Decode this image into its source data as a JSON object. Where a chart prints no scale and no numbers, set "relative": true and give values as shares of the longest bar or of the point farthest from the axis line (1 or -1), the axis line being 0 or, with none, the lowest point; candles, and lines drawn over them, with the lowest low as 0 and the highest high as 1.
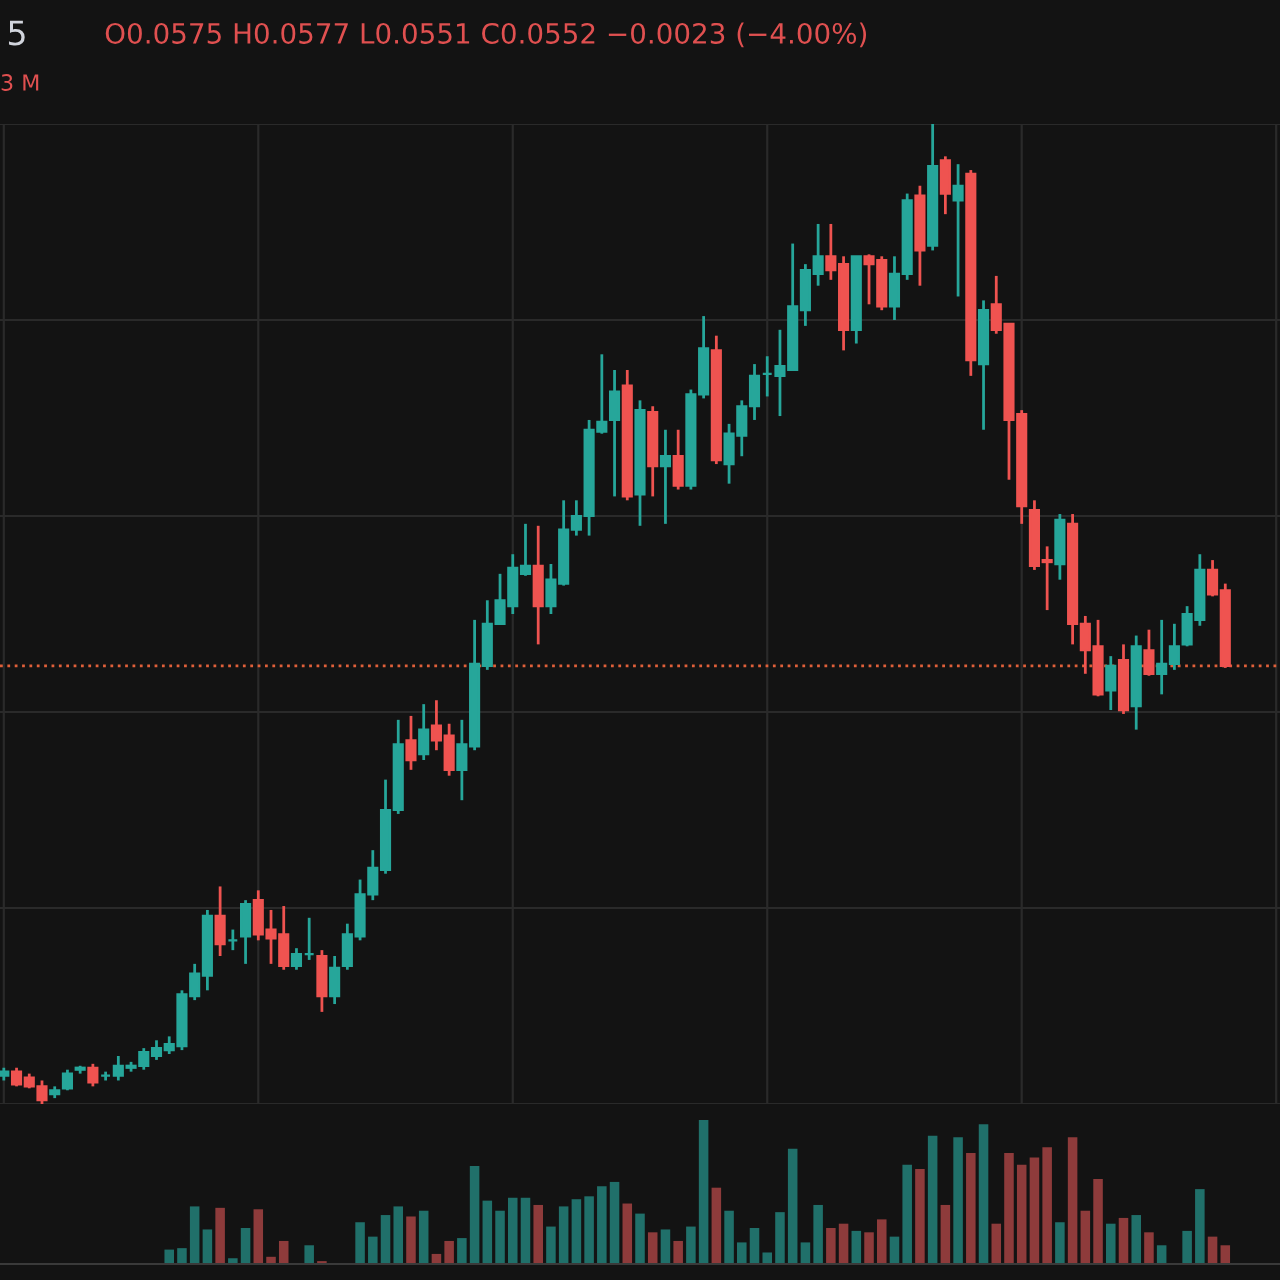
{
  "chart_data": [
    {
      "type": "candlestick",
      "relative": true,
      "title": "5",
      "grid": true,
      "annotations": [
        "O0.0575 H0.0577 L0.0551 C0.0552 −0.0023 (−4.00%)",
        "3 M"
      ],
      "ref_lines": [
        {
          "axis": "y",
          "value": 0.447,
          "color": "#e0603a",
          "line_style": "dotted"
        }
      ],
      "categories": [
        null,
        null,
        null,
        null,
        null,
        null,
        null,
        null,
        null,
        null,
        null,
        null,
        null,
        null,
        null,
        null,
        null,
        null,
        null,
        null,
        null,
        null,
        null,
        null,
        null,
        null,
        null,
        null,
        null,
        null,
        null,
        null,
        null,
        null,
        null,
        null,
        null,
        null,
        null,
        null,
        null,
        null,
        null,
        null,
        null,
        null,
        null,
        null,
        null,
        null,
        null,
        null,
        null,
        null,
        null,
        null,
        null,
        null,
        null,
        null,
        null,
        null,
        null,
        null,
        null,
        null,
        null,
        null,
        null,
        null,
        null,
        null,
        null,
        null,
        null,
        null,
        null,
        null,
        null,
        null,
        null,
        null,
        null,
        null,
        null,
        null,
        null,
        null,
        null,
        null,
        null,
        null,
        null,
        null,
        null,
        null,
        null
      ],
      "ohlc": [
        [
          0.029,
          0.037,
          0.024,
          0.033
        ],
        [
          0.033,
          0.037,
          0.018,
          0.02
        ],
        [
          0.027,
          0.031,
          0.016,
          0.018
        ],
        [
          0.018,
          0.024,
          0.0,
          0.004
        ],
        [
          0.01,
          0.018,
          0.006,
          0.014
        ],
        [
          0.016,
          0.035,
          0.014,
          0.031
        ],
        [
          0.035,
          0.039,
          0.031,
          0.037
        ],
        [
          0.037,
          0.041,
          0.018,
          0.022
        ],
        [
          0.029,
          0.033,
          0.024,
          0.029
        ],
        [
          0.029,
          0.049,
          0.024,
          0.039
        ],
        [
          0.037,
          0.043,
          0.033,
          0.039
        ],
        [
          0.039,
          0.057,
          0.035,
          0.053
        ],
        [
          0.049,
          0.065,
          0.045,
          0.057
        ],
        [
          0.055,
          0.069,
          0.051,
          0.061
        ],
        [
          0.059,
          0.116,
          0.055,
          0.112
        ],
        [
          0.11,
          0.143,
          0.106,
          0.133
        ],
        [
          0.131,
          0.198,
          0.116,
          0.192
        ],
        [
          0.192,
          0.222,
          0.151,
          0.163
        ],
        [
          0.167,
          0.178,
          0.157,
          0.167
        ],
        [
          0.171,
          0.208,
          0.143,
          0.204
        ],
        [
          0.208,
          0.218,
          0.167,
          0.173
        ],
        [
          0.178,
          0.198,
          0.143,
          0.169
        ],
        [
          0.173,
          0.202,
          0.137,
          0.141
        ],
        [
          0.141,
          0.159,
          0.137,
          0.153
        ],
        [
          0.153,
          0.19,
          0.147,
          0.153
        ],
        [
          0.151,
          0.157,
          0.094,
          0.11
        ],
        [
          0.11,
          0.151,
          0.102,
          0.139
        ],
        [
          0.141,
          0.184,
          0.137,
          0.173
        ],
        [
          0.171,
          0.229,
          0.167,
          0.214
        ],
        [
          0.214,
          0.259,
          0.208,
          0.241
        ],
        [
          0.239,
          0.331,
          0.235,
          0.3
        ],
        [
          0.3,
          0.392,
          0.296,
          0.367
        ],
        [
          0.371,
          0.396,
          0.341,
          0.351
        ],
        [
          0.357,
          0.408,
          0.351,
          0.382
        ],
        [
          0.386,
          0.412,
          0.361,
          0.371
        ],
        [
          0.376,
          0.388,
          0.335,
          0.341
        ],
        [
          0.341,
          0.392,
          0.31,
          0.367
        ],
        [
          0.365,
          0.494,
          0.361,
          0.449
        ],
        [
          0.447,
          0.514,
          0.443,
          0.49
        ],
        [
          0.49,
          0.541,
          0.49,
          0.514
        ],
        [
          0.508,
          0.561,
          0.5,
          0.547
        ],
        [
          0.541,
          0.592,
          0.539,
          0.549
        ],
        [
          0.549,
          0.59,
          0.469,
          0.508
        ],
        [
          0.508,
          0.551,
          0.5,
          0.535
        ],
        [
          0.531,
          0.616,
          0.529,
          0.586
        ],
        [
          0.586,
          0.616,
          0.58,
          0.6
        ],
        [
          0.6,
          0.698,
          0.58,
          0.688
        ],
        [
          0.686,
          0.765,
          0.684,
          0.696
        ],
        [
          0.698,
          0.749,
          0.62,
          0.727
        ],
        [
          0.733,
          0.749,
          0.616,
          0.62
        ],
        [
          0.622,
          0.718,
          0.59,
          0.708
        ],
        [
          0.706,
          0.712,
          0.62,
          0.651
        ],
        [
          0.651,
          0.688,
          0.592,
          0.661
        ],
        [
          0.661,
          0.688,
          0.627,
          0.631
        ],
        [
          0.631,
          0.729,
          0.627,
          0.724
        ],
        [
          0.724,
          0.804,
          0.72,
          0.771
        ],
        [
          0.769,
          0.784,
          0.653,
          0.657
        ],
        [
          0.653,
          0.694,
          0.633,
          0.684
        ],
        [
          0.682,
          0.718,
          0.661,
          0.712
        ],
        [
          0.712,
          0.755,
          0.698,
          0.743
        ],
        [
          0.745,
          0.763,
          0.722,
          0.745
        ],
        [
          0.743,
          0.79,
          0.702,
          0.753
        ],
        [
          0.749,
          0.878,
          0.749,
          0.814
        ],
        [
          0.81,
          0.857,
          0.794,
          0.851
        ],
        [
          0.847,
          0.898,
          0.835,
          0.865
        ],
        [
          0.865,
          0.898,
          0.841,
          0.851
        ],
        [
          0.857,
          0.865,
          0.769,
          0.79
        ],
        [
          0.79,
          0.865,
          0.776,
          0.865
        ],
        [
          0.865,
          0.867,
          0.816,
          0.857
        ],
        [
          0.861,
          0.865,
          0.81,
          0.814
        ],
        [
          0.814,
          0.865,
          0.8,
          0.847
        ],
        [
          0.847,
          0.929,
          0.841,
          0.922
        ],
        [
          0.927,
          0.937,
          0.835,
          0.871
        ],
        [
          0.876,
          1.0,
          0.871,
          0.957
        ],
        [
          0.963,
          0.967,
          0.908,
          0.929
        ],
        [
          0.922,
          0.959,
          0.824,
          0.937
        ],
        [
          0.949,
          0.953,
          0.743,
          0.759
        ],
        [
          0.755,
          0.82,
          0.688,
          0.81
        ],
        [
          0.816,
          0.845,
          0.786,
          0.79
        ],
        [
          0.796,
          0.796,
          0.637,
          0.698
        ],
        [
          0.704,
          0.708,
          0.592,
          0.61
        ],
        [
          0.606,
          0.616,
          0.545,
          0.549
        ],
        [
          0.555,
          0.569,
          0.504,
          0.553
        ],
        [
          0.551,
          0.602,
          0.535,
          0.596
        ],
        [
          0.592,
          0.602,
          0.469,
          0.49
        ],
        [
          0.49,
          0.498,
          0.439,
          0.463
        ],
        [
          0.467,
          0.494,
          0.416,
          0.418
        ],
        [
          0.422,
          0.457,
          0.402,
          0.447
        ],
        [
          0.453,
          0.469,
          0.398,
          0.402
        ],
        [
          0.406,
          0.478,
          0.382,
          0.467
        ],
        [
          0.463,
          0.484,
          0.437,
          0.439
        ],
        [
          0.439,
          0.494,
          0.418,
          0.449
        ],
        [
          0.449,
          0.49,
          0.443,
          0.467
        ],
        [
          0.469,
          0.508,
          0.467,
          0.5
        ],
        [
          0.494,
          0.561,
          0.488,
          0.545
        ],
        [
          0.545,
          0.555,
          0.518,
          0.52
        ],
        [
          0.524,
          0.531,
          0.445,
          0.447
        ]
      ],
      "colors": [
        "#26a69a",
        "#ef5350",
        "#ef5350",
        "#ef5350",
        "#26a69a",
        "#26a69a",
        "#26a69a",
        "#ef5350",
        "#26a69a",
        "#26a69a",
        "#26a69a",
        "#26a69a",
        "#26a69a",
        "#26a69a",
        "#26a69a",
        "#26a69a",
        "#26a69a",
        "#ef5350",
        "#26a69a",
        "#26a69a",
        "#ef5350",
        "#ef5350",
        "#ef5350",
        "#26a69a",
        "#26a69a",
        "#ef5350",
        "#26a69a",
        "#26a69a",
        "#26a69a",
        "#26a69a",
        "#26a69a",
        "#26a69a",
        "#ef5350",
        "#26a69a",
        "#ef5350",
        "#ef5350",
        "#26a69a",
        "#26a69a",
        "#26a69a",
        "#26a69a",
        "#26a69a",
        "#26a69a",
        "#ef5350",
        "#26a69a",
        "#26a69a",
        "#26a69a",
        "#26a69a",
        "#26a69a",
        "#26a69a",
        "#ef5350",
        "#26a69a",
        "#ef5350",
        "#26a69a",
        "#ef5350",
        "#26a69a",
        "#26a69a",
        "#ef5350",
        "#26a69a",
        "#26a69a",
        "#26a69a",
        "#26a69a",
        "#26a69a",
        "#26a69a",
        "#26a69a",
        "#26a69a",
        "#ef5350",
        "#ef5350",
        "#26a69a",
        "#ef5350",
        "#ef5350",
        "#26a69a",
        "#26a69a",
        "#ef5350",
        "#26a69a",
        "#ef5350",
        "#26a69a",
        "#ef5350",
        "#26a69a",
        "#ef5350",
        "#ef5350",
        "#ef5350",
        "#ef5350",
        "#ef5350",
        "#26a69a",
        "#ef5350",
        "#ef5350",
        "#ef5350",
        "#26a69a",
        "#ef5350",
        "#26a69a",
        "#ef5350",
        "#26a69a",
        "#26a69a",
        "#26a69a",
        "#26a69a",
        "#ef5350",
        "#ef5350"
      ],
      "tick_labels": false
    },
    {
      "type": "bar",
      "relative": true,
      "tick_labels": false,
      "categories": [
        null,
        null,
        null,
        null,
        null,
        null,
        null,
        null,
        null,
        null,
        null,
        null,
        null,
        null,
        null,
        null,
        null,
        null,
        null,
        null,
        null,
        null,
        null,
        null,
        null,
        null,
        null,
        null,
        null,
        null,
        null,
        null,
        null,
        null,
        null,
        null,
        null,
        null,
        null,
        null,
        null,
        null,
        null,
        null,
        null,
        null,
        null,
        null,
        null,
        null,
        null,
        null,
        null,
        null,
        null,
        null,
        null,
        null,
        null,
        null,
        null,
        null,
        null,
        null,
        null,
        null,
        null,
        null,
        null,
        null,
        null,
        null,
        null,
        null,
        null,
        null,
        null,
        null,
        null,
        null,
        null,
        null,
        null,
        null,
        null,
        null,
        null,
        null,
        null,
        null,
        null,
        null,
        null,
        null,
        null,
        null,
        null
      ],
      "values": [
        null,
        null,
        null,
        null,
        null,
        null,
        null,
        null,
        null,
        null,
        null,
        null,
        null,
        0.1,
        0.11,
        0.4,
        0.24,
        0.39,
        0.04,
        0.25,
        0.38,
        0.05,
        0.16,
        null,
        0.13,
        0.02,
        null,
        null,
        0.29,
        0.19,
        0.34,
        0.4,
        0.33,
        0.37,
        0.07,
        0.16,
        0.18,
        0.68,
        0.44,
        0.37,
        0.46,
        0.46,
        0.41,
        0.26,
        0.4,
        0.45,
        0.47,
        0.54,
        0.57,
        0.42,
        0.35,
        0.22,
        0.24,
        0.16,
        0.26,
        1.0,
        0.53,
        0.37,
        0.15,
        0.25,
        0.08,
        0.36,
        0.8,
        0.15,
        0.41,
        0.25,
        0.28,
        0.23,
        0.22,
        0.31,
        0.19,
        0.69,
        0.66,
        0.89,
        0.41,
        0.88,
        0.77,
        0.97,
        0.28,
        0.77,
        0.69,
        0.74,
        0.81,
        0.29,
        0.88,
        0.37,
        0.59,
        0.28,
        0.32,
        0.34,
        0.22,
        0.13,
        null,
        0.23,
        0.52,
        0.19,
        0.13
      ],
      "colors": [
        "#20706a",
        "#8e3b3b",
        "#8e3b3b",
        "#8e3b3b",
        "#20706a",
        "#20706a",
        "#20706a",
        "#8e3b3b",
        "#20706a",
        "#20706a",
        "#20706a",
        "#20706a",
        "#20706a",
        "#20706a",
        "#20706a",
        "#20706a",
        "#20706a",
        "#8e3b3b",
        "#20706a",
        "#20706a",
        "#8e3b3b",
        "#8e3b3b",
        "#8e3b3b",
        "#20706a",
        "#20706a",
        "#8e3b3b",
        "#20706a",
        "#20706a",
        "#20706a",
        "#20706a",
        "#20706a",
        "#20706a",
        "#8e3b3b",
        "#20706a",
        "#8e3b3b",
        "#8e3b3b",
        "#20706a",
        "#20706a",
        "#20706a",
        "#20706a",
        "#20706a",
        "#20706a",
        "#8e3b3b",
        "#20706a",
        "#20706a",
        "#20706a",
        "#20706a",
        "#20706a",
        "#20706a",
        "#8e3b3b",
        "#20706a",
        "#8e3b3b",
        "#20706a",
        "#8e3b3b",
        "#20706a",
        "#20706a",
        "#8e3b3b",
        "#20706a",
        "#20706a",
        "#20706a",
        "#20706a",
        "#20706a",
        "#20706a",
        "#20706a",
        "#20706a",
        "#8e3b3b",
        "#8e3b3b",
        "#20706a",
        "#8e3b3b",
        "#8e3b3b",
        "#20706a",
        "#20706a",
        "#8e3b3b",
        "#20706a",
        "#8e3b3b",
        "#20706a",
        "#8e3b3b",
        "#20706a",
        "#8e3b3b",
        "#8e3b3b",
        "#8e3b3b",
        "#8e3b3b",
        "#8e3b3b",
        "#20706a",
        "#8e3b3b",
        "#8e3b3b",
        "#8e3b3b",
        "#20706a",
        "#8e3b3b",
        "#20706a",
        "#8e3b3b",
        "#20706a",
        "#20706a",
        "#20706a",
        "#20706a",
        "#8e3b3b",
        "#8e3b3b"
      ]
    }
  ]
}
